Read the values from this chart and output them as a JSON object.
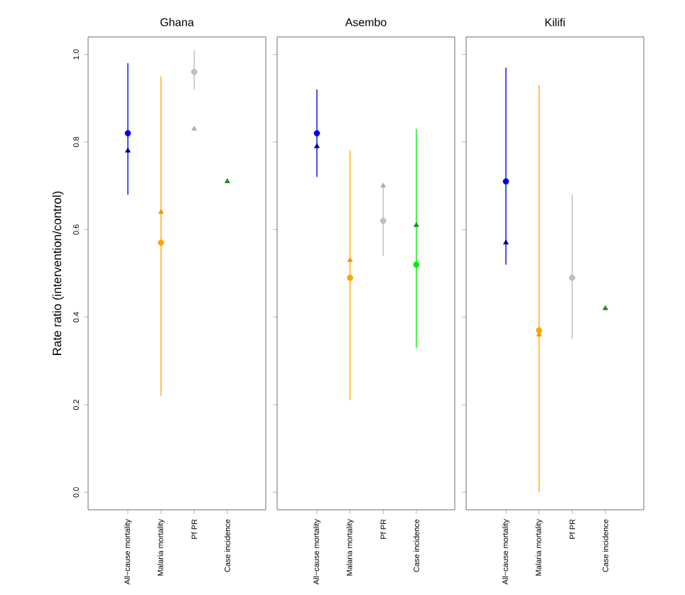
{
  "chart_data": [
    {
      "type": "scatter",
      "title": "Ghana",
      "ylabel": "Rate ratio (intervention/control)",
      "categories": [
        "All−cause mortality",
        "Malaria mortality",
        "Pf PR",
        "Case incidence"
      ],
      "ylim": [
        -0.04,
        1.04
      ],
      "yticks": [
        {
          "value": 0,
          "label": "0.0"
        },
        {
          "value": 0.2,
          "label": "0.2"
        },
        {
          "value": 0.4,
          "label": "0.4"
        },
        {
          "value": 0.6,
          "label": "0.6"
        },
        {
          "value": 0.8,
          "label": "0.8"
        },
        {
          "value": 1,
          "label": "1.0"
        }
      ],
      "grid": false,
      "series": [
        {
          "marker": "circle",
          "colors": [
            "#0000ee",
            "#ffa500",
            "#bebebe",
            "#00ee00"
          ],
          "values": [
            0.82,
            0.57,
            0.96,
            null
          ],
          "errors": [
            [
              0.68,
              0.98
            ],
            [
              0.22,
              0.95
            ],
            [
              0.92,
              1.01
            ],
            null
          ]
        },
        {
          "marker": "triangle",
          "colors": [
            "#00008b",
            "#ee9a00",
            "#b0b0b0",
            "#228b22"
          ],
          "values": [
            0.78,
            0.64,
            0.83,
            0.71
          ]
        }
      ]
    },
    {
      "type": "scatter",
      "title": "Asembo",
      "categories": [
        "All−cause mortality",
        "Malaria mortality",
        "Pf PR",
        "Case incidence"
      ],
      "ylim": [
        -0.04,
        1.04
      ],
      "yticks": [
        0,
        0.2,
        0.4,
        0.6,
        0.8,
        1
      ],
      "tick_labels": "x",
      "grid": false,
      "series": [
        {
          "marker": "circle",
          "colors": [
            "#0000ee",
            "#ffa500",
            "#bebebe",
            "#00ee00"
          ],
          "values": [
            0.82,
            0.49,
            0.62,
            0.52
          ],
          "errors": [
            [
              0.72,
              0.92
            ],
            [
              0.21,
              0.78
            ],
            [
              0.54,
              0.7
            ],
            [
              0.33,
              0.83
            ]
          ]
        },
        {
          "marker": "triangle",
          "colors": [
            "#00008b",
            "#ee9a00",
            "#b0b0b0",
            "#228b22"
          ],
          "values": [
            0.79,
            0.53,
            0.7,
            0.61
          ]
        }
      ]
    },
    {
      "type": "scatter",
      "title": "Kilifi",
      "categories": [
        "All−cause mortality",
        "Malaria mortality",
        "Pf PR",
        "Case incidence"
      ],
      "ylim": [
        -0.04,
        1.04
      ],
      "yticks": [
        0,
        0.2,
        0.4,
        0.6,
        0.8,
        1
      ],
      "tick_labels": "x",
      "grid": false,
      "series": [
        {
          "marker": "circle",
          "colors": [
            "#0000ee",
            "#ffa500",
            "#bebebe",
            "#00ee00"
          ],
          "values": [
            0.71,
            0.37,
            0.49,
            null
          ],
          "errors": [
            [
              0.52,
              0.97
            ],
            [
              0.0,
              0.93
            ],
            [
              0.35,
              0.68
            ],
            null
          ]
        },
        {
          "marker": "triangle",
          "colors": [
            "#00008b",
            "#ee9a00",
            "#b0b0b0",
            "#228b22"
          ],
          "values": [
            0.57,
            0.36,
            null,
            0.42
          ]
        }
      ]
    }
  ]
}
